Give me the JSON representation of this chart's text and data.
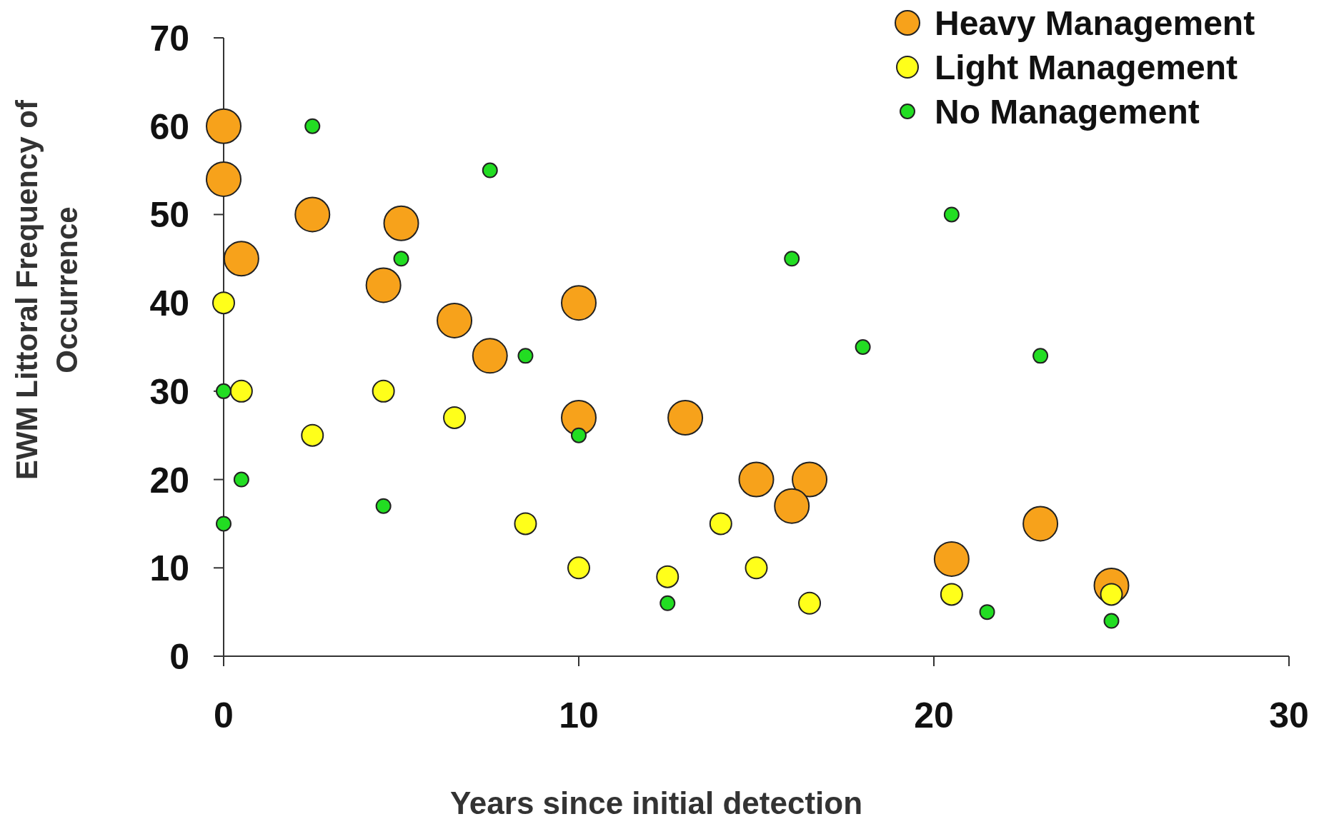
{
  "chart_data": {
    "type": "scatter",
    "xlabel": "Years since initial detection",
    "ylabel": "EWM Littoral Frequency of Occurrence",
    "xlim": [
      0,
      30
    ],
    "xticks": [
      0,
      10,
      20,
      30
    ],
    "ylim": [
      0,
      70
    ],
    "yticks": [
      0,
      10,
      20,
      30,
      40,
      50,
      60,
      70
    ],
    "grid": false,
    "legend": "top right",
    "marker": "circle",
    "series": [
      {
        "name": "Heavy Management",
        "color": "#f7a21b",
        "x": [
          0,
          0,
          2.5,
          5,
          0.5,
          4.5,
          6.5,
          7.5,
          10,
          10,
          13,
          15,
          16.5,
          16,
          20.5,
          23,
          25
        ],
        "values": [
          60,
          54,
          50,
          49,
          45,
          42,
          38,
          34,
          40,
          27,
          27,
          20,
          20,
          17,
          11,
          15,
          8
        ]
      },
      {
        "name": "Light Management",
        "color": "#ffff1a",
        "x": [
          0,
          0.5,
          2.5,
          4.5,
          6.5,
          8.5,
          10,
          12.5,
          14,
          15,
          16.5,
          20.5,
          25
        ],
        "values": [
          40,
          30,
          25,
          30,
          27,
          15,
          10,
          9,
          15,
          10,
          6,
          7,
          7
        ]
      },
      {
        "name": "No Management",
        "color": "#22dd22",
        "x": [
          0,
          0,
          0.5,
          2.5,
          4.5,
          5,
          7.5,
          8.5,
          10,
          12.5,
          16,
          18,
          20.5,
          21.5,
          23,
          25
        ],
        "values": [
          30,
          15,
          20,
          60,
          17,
          45,
          55,
          34,
          25,
          6,
          45,
          35,
          50,
          5,
          34,
          4
        ]
      }
    ]
  }
}
